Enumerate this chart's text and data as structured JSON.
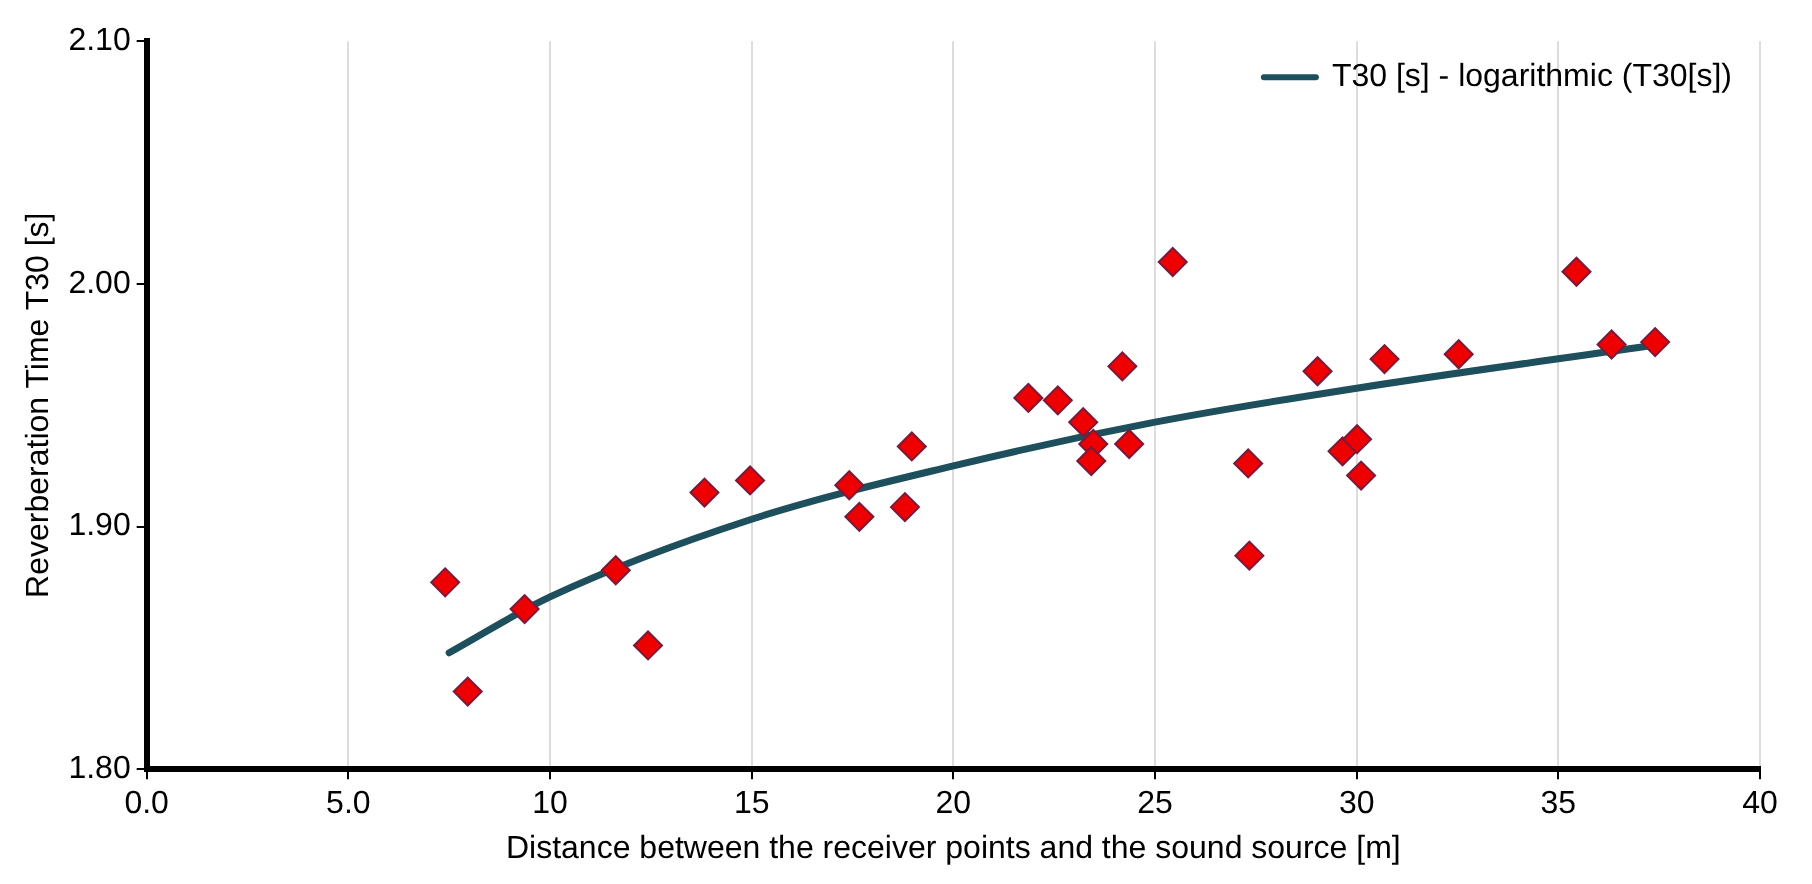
{
  "chart_data": {
    "type": "scatter",
    "xlabel": "Distance between the receiver points and the sound source [m]",
    "ylabel": "Reverberation Time T30 [s]",
    "xlim": [
      0,
      40
    ],
    "xticks": [
      {
        "value": 0,
        "label": "0.0"
      },
      {
        "value": 5,
        "label": "5.0"
      },
      10,
      15,
      20,
      25,
      30,
      35,
      40
    ],
    "ylim": [
      1.8,
      2.1
    ],
    "yticks": [
      {
        "value": 1.8,
        "label": "1.80"
      },
      {
        "value": 1.9,
        "label": "1.90"
      },
      {
        "value": 2.0,
        "label": "2.00"
      },
      {
        "value": 2.1,
        "label": "2.10"
      }
    ],
    "grid": "x",
    "legend": "top right",
    "marker": "diamond",
    "series": [
      {
        "type": "scatter",
        "color": "#ee0000",
        "x": [
          7.4,
          7.96,
          9.37,
          11.63,
          12.43,
          13.83,
          14.96,
          17.42,
          17.67,
          18.8,
          18.97,
          21.86,
          22.59,
          24.19,
          23.22,
          23.47,
          23.42,
          24.36,
          25.44,
          27.31,
          27.34,
          29.03,
          29.65,
          30.01,
          30.11,
          30.69,
          32.53,
          35.45,
          36.32,
          37.4
        ],
        "values": [
          1.877,
          1.832,
          1.866,
          1.882,
          1.851,
          1.914,
          1.919,
          1.917,
          1.904,
          1.908,
          1.933,
          1.953,
          1.952,
          1.966,
          1.943,
          1.934,
          1.927,
          1.934,
          2.009,
          1.926,
          1.888,
          1.964,
          1.931,
          1.936,
          1.921,
          1.969,
          1.971,
          2.005,
          1.975,
          1.976
        ]
      },
      {
        "type": "line",
        "name": "T30 [s] - logarithmic (T30[s])",
        "color": "#1d4f5c",
        "marker": "none",
        "x": [
          7.5,
          10,
          15,
          20,
          25,
          30,
          37.5
        ],
        "values": [
          1.848,
          1.871,
          1.903,
          1.925,
          1.943,
          1.957,
          1.975
        ]
      }
    ]
  }
}
